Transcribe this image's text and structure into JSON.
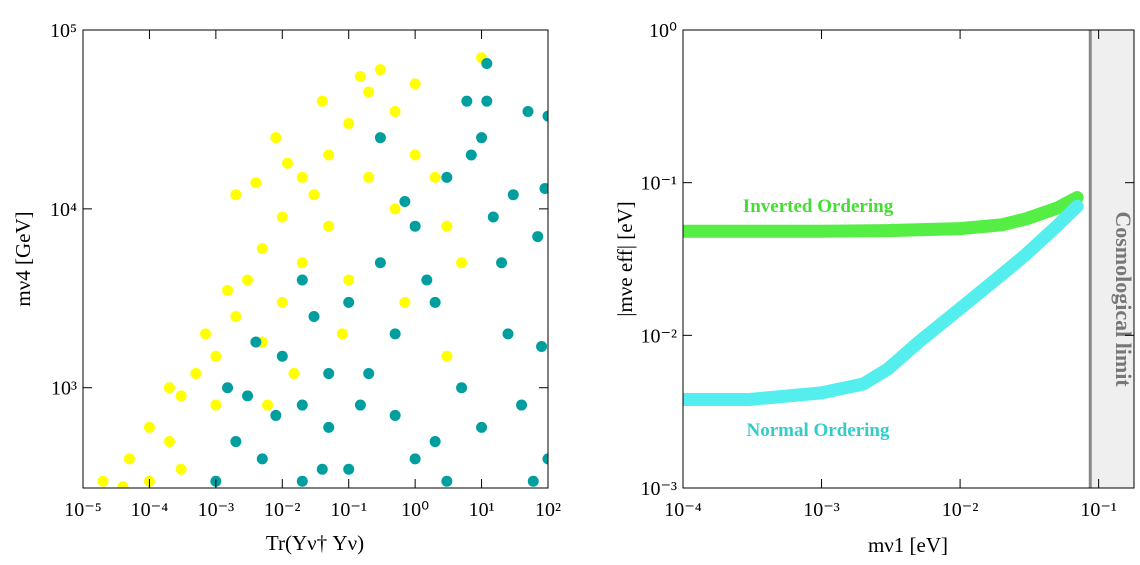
{
  "chart_data": [
    {
      "type": "scatter",
      "x_label": "Tr(Yν† Yν)",
      "y_label": "mν4   [GeV]",
      "xscale": "log",
      "yscale": "log",
      "xlim": [
        1e-05,
        100
      ],
      "ylim": [
        275,
        100000
      ],
      "xticks": [
        {
          "value": 1e-05,
          "label": "10⁻⁵"
        },
        {
          "value": 0.0001,
          "label": "10⁻⁴"
        },
        {
          "value": 0.001,
          "label": "10⁻³"
        },
        {
          "value": 0.01,
          "label": "10⁻²"
        },
        {
          "value": 0.1,
          "label": "10⁻¹"
        },
        {
          "value": 1,
          "label": "10⁰"
        },
        {
          "value": 10,
          "label": "10¹"
        },
        {
          "value": 100,
          "label": "10²"
        }
      ],
      "yticks": [
        {
          "value": 1000,
          "label": "10³"
        },
        {
          "value": 10000,
          "label": "10⁴"
        },
        {
          "value": 100000,
          "label": "10⁵"
        }
      ],
      "series": [
        {
          "color": "#ffff00",
          "x": [
            2e-05,
            5e-05,
            0.0001,
            0.0002,
            0.0003,
            0.0005,
            0.001,
            0.002,
            0.003,
            0.005,
            0.001,
            0.0003,
            0.01,
            0.02,
            0.03,
            0.05,
            0.1,
            0.2,
            0.3,
            0.5,
            1,
            0.002,
            0.005,
            0.01,
            0.02,
            0.05,
            0.1,
            0.2,
            0.5,
            1,
            2,
            3,
            5,
            0.0001,
            4e-05,
            0.0007,
            0.0015,
            0.008,
            0.04,
            0.3,
            0.0002,
            0.006,
            0.015,
            0.08,
            0.7,
            3,
            10,
            0.15,
            0.004,
            0.012
          ],
          "values": [
            300,
            400,
            600,
            500,
            900,
            1200,
            1500,
            2500,
            4000,
            6000,
            800,
            350,
            9000,
            5000,
            12000,
            20000,
            30000,
            45000,
            60000,
            35000,
            50000,
            12000,
            1800,
            3000,
            15000,
            8000,
            4000,
            15000,
            10000,
            20000,
            15000,
            8000,
            5000,
            300,
            280,
            2000,
            3500,
            25000,
            40000,
            25000,
            1000,
            800,
            1200,
            2000,
            3000,
            1500,
            70000,
            55000,
            14000,
            18000
          ]
        },
        {
          "color": "#009e9e",
          "x": [
            0.001,
            0.002,
            0.003,
            0.005,
            0.01,
            0.02,
            0.03,
            0.05,
            0.1,
            0.2,
            0.3,
            0.5,
            1,
            1,
            2,
            3,
            5,
            10,
            10,
            12,
            20,
            30,
            50,
            100,
            80,
            60,
            100,
            0.02,
            0.1,
            0.5,
            2,
            7,
            15,
            0.05,
            0.004,
            0.008,
            0.7,
            1.5,
            25,
            40,
            90,
            0.3,
            0.02,
            6,
            0.15,
            3,
            12,
            0.0015,
            0.04,
            70
          ],
          "values": [
            300,
            500,
            900,
            400,
            1500,
            800,
            2500,
            600,
            3000,
            1200,
            5000,
            2000,
            8000,
            400,
            3000,
            15000,
            1000,
            25000,
            600,
            65000,
            5000,
            12000,
            35000,
            33000,
            1700,
            300,
            400,
            300,
            350,
            700,
            500,
            20000,
            9000,
            1200,
            1800,
            700,
            11000,
            4000,
            2000,
            800,
            13000,
            25000,
            4000,
            40000,
            800,
            300,
            40000,
            1000,
            350,
            7000
          ]
        }
      ]
    },
    {
      "type": "line",
      "x_label": "mν1   [eV]",
      "y_label": "|mνe eff|   [eV]",
      "xscale": "log",
      "yscale": "log",
      "xlim": [
        0.0001,
        0.18
      ],
      "ylim": [
        0.001,
        1
      ],
      "xticks": [
        {
          "value": 0.0001,
          "label": "10⁻⁴"
        },
        {
          "value": 0.001,
          "label": "10⁻³"
        },
        {
          "value": 0.01,
          "label": "10⁻²"
        },
        {
          "value": 0.1,
          "label": "10⁻¹"
        }
      ],
      "yticks": [
        {
          "value": 0.001,
          "label": "10⁻³"
        },
        {
          "value": 0.01,
          "label": "10⁻²"
        },
        {
          "value": 0.1,
          "label": "10⁻¹"
        },
        {
          "value": 1,
          "label": "10⁰"
        }
      ],
      "series": [
        {
          "name": "Inverted Ordering",
          "color": "#55ee44",
          "x": [
            0.0001,
            0.0003,
            0.001,
            0.003,
            0.01,
            0.02,
            0.03,
            0.05,
            0.07
          ],
          "values": [
            0.048,
            0.048,
            0.048,
            0.0485,
            0.05,
            0.053,
            0.058,
            0.068,
            0.08
          ]
        },
        {
          "name": "Normal Ordering",
          "color": "#55eeee",
          "x": [
            0.0001,
            0.0003,
            0.001,
            0.002,
            0.003,
            0.005,
            0.01,
            0.02,
            0.03,
            0.05,
            0.07
          ],
          "values": [
            0.0038,
            0.0038,
            0.0042,
            0.0048,
            0.006,
            0.009,
            0.015,
            0.025,
            0.034,
            0.052,
            0.07
          ]
        }
      ],
      "shade": {
        "xmin": 0.087,
        "label": "Cosmological limit"
      }
    }
  ]
}
